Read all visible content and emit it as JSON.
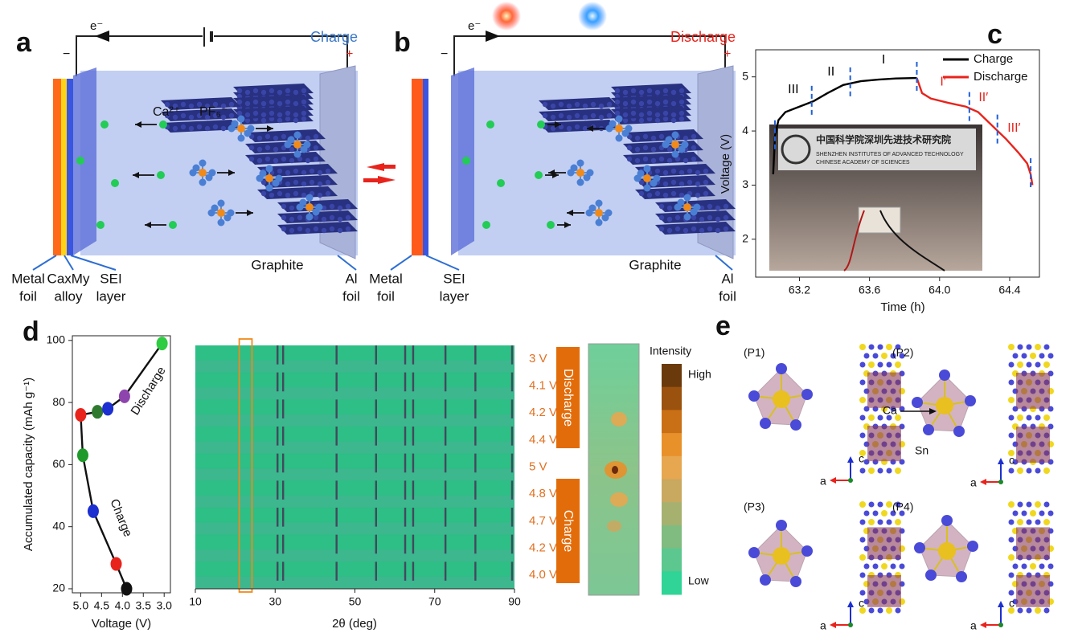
{
  "panels": {
    "a": {
      "label": "a",
      "electron": "e⁻",
      "mode": "Charge",
      "minus": "−",
      "plus": "+",
      "cation": "Ca²⁺",
      "anion": "PF₆⁻",
      "labels": [
        [
          "Metal",
          "foil"
        ],
        [
          "CaxMy",
          "alloy"
        ],
        [
          "SEI",
          "layer"
        ],
        [
          "Graphite"
        ],
        [
          "Al",
          "foil"
        ]
      ]
    },
    "b": {
      "label": "b",
      "electron": "e⁻",
      "mode": "Discharge",
      "minus": "−",
      "plus": "+",
      "labels": [
        [
          "Metal",
          "foil"
        ],
        [
          "SEI",
          "layer"
        ],
        [
          "Graphite"
        ],
        [
          "Al",
          "foil"
        ]
      ]
    },
    "c": {
      "label": "c",
      "photo_text": [
        "中国科学院深圳先进技术研究院",
        "SHENZHEN INSTITUTES OF ADVANCED TECHNOLOGY",
        "CHINESE ACADEMY OF SCIENCES"
      ]
    },
    "d": {
      "label": "d",
      "intensity": {
        "title": "Intensity",
        "high": "High",
        "low": "Low",
        "colors": [
          "#6b3a0c",
          "#9a520e",
          "#c96f16",
          "#e8902a",
          "#e7a650",
          "#c9a860",
          "#a6b170",
          "#80bb80",
          "#5cc78f",
          "#2fd496"
        ]
      }
    },
    "e": {
      "label": "e",
      "structures": [
        "(P1)",
        "(P2)",
        "(P3)",
        "(P4)"
      ],
      "ca": "Ca",
      "sn": "Sn",
      "axis_c": "c",
      "axis_a": "a"
    }
  },
  "chart_data": [
    {
      "type": "line",
      "xlabel": "Time (h)",
      "ylabel": "Voltage (V)",
      "xlim": [
        62.95,
        64.57
      ],
      "ylim": [
        1.3,
        5.5
      ],
      "xticks": [
        63.2,
        63.6,
        {
          "value": 64,
          "label": "64.0"
        },
        64.4
      ],
      "yticks": [
        2,
        3,
        4,
        5
      ],
      "legend": "upper right",
      "series": [
        {
          "name": "Charge",
          "color": "#000000",
          "x": [
            63.05,
            63.06,
            63.08,
            63.12,
            63.2,
            63.28,
            63.36,
            63.45,
            63.55,
            63.65,
            63.75,
            63.87
          ],
          "values": [
            3.2,
            3.9,
            4.2,
            4.35,
            4.45,
            4.55,
            4.7,
            4.85,
            4.92,
            4.95,
            4.97,
            4.98
          ]
        },
        {
          "name": "Discharge",
          "color": "#e8231c",
          "x": [
            63.87,
            63.9,
            63.95,
            64.05,
            64.15,
            64.22,
            64.3,
            64.38,
            64.45,
            64.5,
            64.52,
            64.53
          ],
          "values": [
            4.98,
            4.7,
            4.6,
            4.52,
            4.45,
            4.35,
            4.1,
            3.85,
            3.6,
            3.4,
            3.2,
            3.0
          ]
        }
      ],
      "dividers": [
        63.06,
        63.27,
        63.49,
        63.87,
        64.17,
        64.33,
        64.52
      ],
      "divider_color": "#1f5fd6",
      "annotations": [
        "III",
        "II",
        "I",
        "I′",
        "II′",
        "III′"
      ]
    },
    {
      "type": "line",
      "xlabel": "Voltage (V)",
      "ylabel": "Accumulated capacity (mAh g⁻¹)",
      "xlim": [
        5.2,
        2.85
      ],
      "ylim": [
        18.7,
        101.5
      ],
      "xticks": [
        {
          "value": 5,
          "label": "5.0"
        },
        4.5,
        {
          "value": 4,
          "label": "4.0"
        },
        3.5,
        {
          "value": 3,
          "label": "3.0"
        }
      ],
      "yticks": [
        20,
        40,
        60,
        80,
        100
      ],
      "x": [
        3.9,
        4.15,
        4.7,
        4.95,
        5.0,
        4.6,
        4.35,
        3.95,
        3.05
      ],
      "values": [
        20,
        28,
        45,
        63,
        76,
        77,
        78,
        82,
        99
      ],
      "marker_colors": [
        "#111111",
        "#e8231c",
        "#1c2fd0",
        "#1f9a2a",
        "#e8231c",
        "#2f7a30",
        "#1c2fd0",
        "#8e44ad",
        "#2ecc40"
      ],
      "annotations": [
        "Discharge",
        "Charge"
      ]
    },
    {
      "type": "heatmap",
      "xlabel": "2θ (deg)",
      "xlim": [
        10,
        90
      ],
      "xticks": [
        10,
        30,
        50,
        70,
        90
      ],
      "categories": [
        "3 V",
        "4.1 V",
        "4.2 V",
        "4.4 V",
        "5 V",
        "4.8 V",
        "4.7 V",
        "4.2 V",
        "4.0 V"
      ],
      "peaks": [
        30.6,
        32,
        45.4,
        55.3,
        62.6,
        64.6,
        72.7,
        80.2,
        89.4
      ],
      "highlight": [
        21,
        24.2
      ],
      "groups": [
        "Discharge",
        "Charge"
      ],
      "color": "#2dbf85"
    }
  ]
}
